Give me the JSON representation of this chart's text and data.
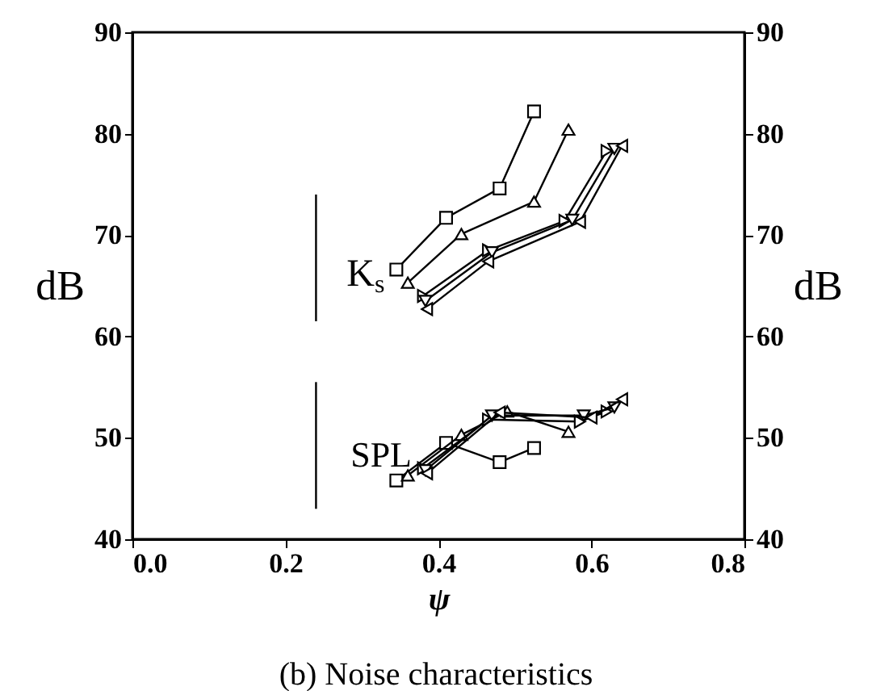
{
  "chart_data": {
    "type": "line",
    "xlabel": "ψ",
    "ylabel": "dB",
    "y2label": "dB",
    "annotations": [
      "K$_{s}$",
      "SPL",
      "(b) Noise characteristics"
    ],
    "xlim": [
      0,
      0.8
    ],
    "xticks": [
      {
        "value": 0,
        "label": "0.0"
      },
      0.2,
      0.4,
      0.6,
      0.8
    ],
    "ylim": [
      40,
      90
    ],
    "yticks": [
      40,
      50,
      60,
      70,
      80,
      90
    ],
    "y2lim": [
      40,
      90
    ],
    "y2ticks": [
      40,
      50,
      60,
      70,
      80,
      90
    ],
    "series": [
      {
        "color": "#000000",
        "marker": "square",
        "x": [
          0.345,
          0.41,
          0.48,
          0.525
        ],
        "values": [
          66.6,
          71.7,
          74.6,
          82.2
        ]
      },
      {
        "color": "#000000",
        "marker": "triangle-up",
        "x": [
          0.36,
          0.43,
          0.525,
          0.57
        ],
        "values": [
          65.3,
          70.1,
          73.3,
          80.4
        ]
      },
      {
        "color": "#000000",
        "marker": "triangle-right",
        "x": [
          0.38,
          0.465,
          0.565,
          0.62
        ],
        "values": [
          64.0,
          68.5,
          71.4,
          78.3
        ]
      },
      {
        "color": "#000000",
        "marker": "triangle-down",
        "x": [
          0.383,
          0.47,
          0.575,
          0.63
        ],
        "values": [
          63.5,
          68.3,
          71.5,
          78.5
        ]
      },
      {
        "color": "#000000",
        "marker": "triangle-left",
        "x": [
          0.385,
          0.465,
          0.585,
          0.64
        ],
        "values": [
          62.7,
          67.4,
          71.3,
          78.8
        ]
      },
      {
        "color": "#000000",
        "marker": "square",
        "x": [
          0.345,
          0.41,
          0.48,
          0.525
        ],
        "values": [
          45.8,
          49.5,
          47.6,
          49.0
        ]
      },
      {
        "color": "#000000",
        "marker": "triangle-up",
        "x": [
          0.36,
          0.43,
          0.49,
          0.57
        ],
        "values": [
          46.3,
          50.3,
          52.6,
          50.6
        ]
      },
      {
        "color": "#000000",
        "marker": "triangle-right",
        "x": [
          0.38,
          0.465,
          0.585,
          0.62
        ],
        "values": [
          47.0,
          51.8,
          51.6,
          52.6
        ]
      },
      {
        "color": "#000000",
        "marker": "triangle-down",
        "x": [
          0.383,
          0.47,
          0.59,
          0.63
        ],
        "values": [
          46.8,
          52.2,
          52.2,
          53.0
        ]
      },
      {
        "color": "#000000",
        "marker": "triangle-left",
        "x": [
          0.385,
          0.48,
          0.6,
          0.64
        ],
        "values": [
          46.5,
          52.5,
          52.0,
          53.8
        ]
      },
      {
        "color": "#000000",
        "marker": "none",
        "x": [
          0.24,
          0.24
        ],
        "values": [
          61.5,
          74.0
        ]
      },
      {
        "color": "#000000",
        "marker": "none",
        "x": [
          0.24,
          0.24
        ],
        "values": [
          43.0,
          55.5
        ]
      }
    ]
  }
}
